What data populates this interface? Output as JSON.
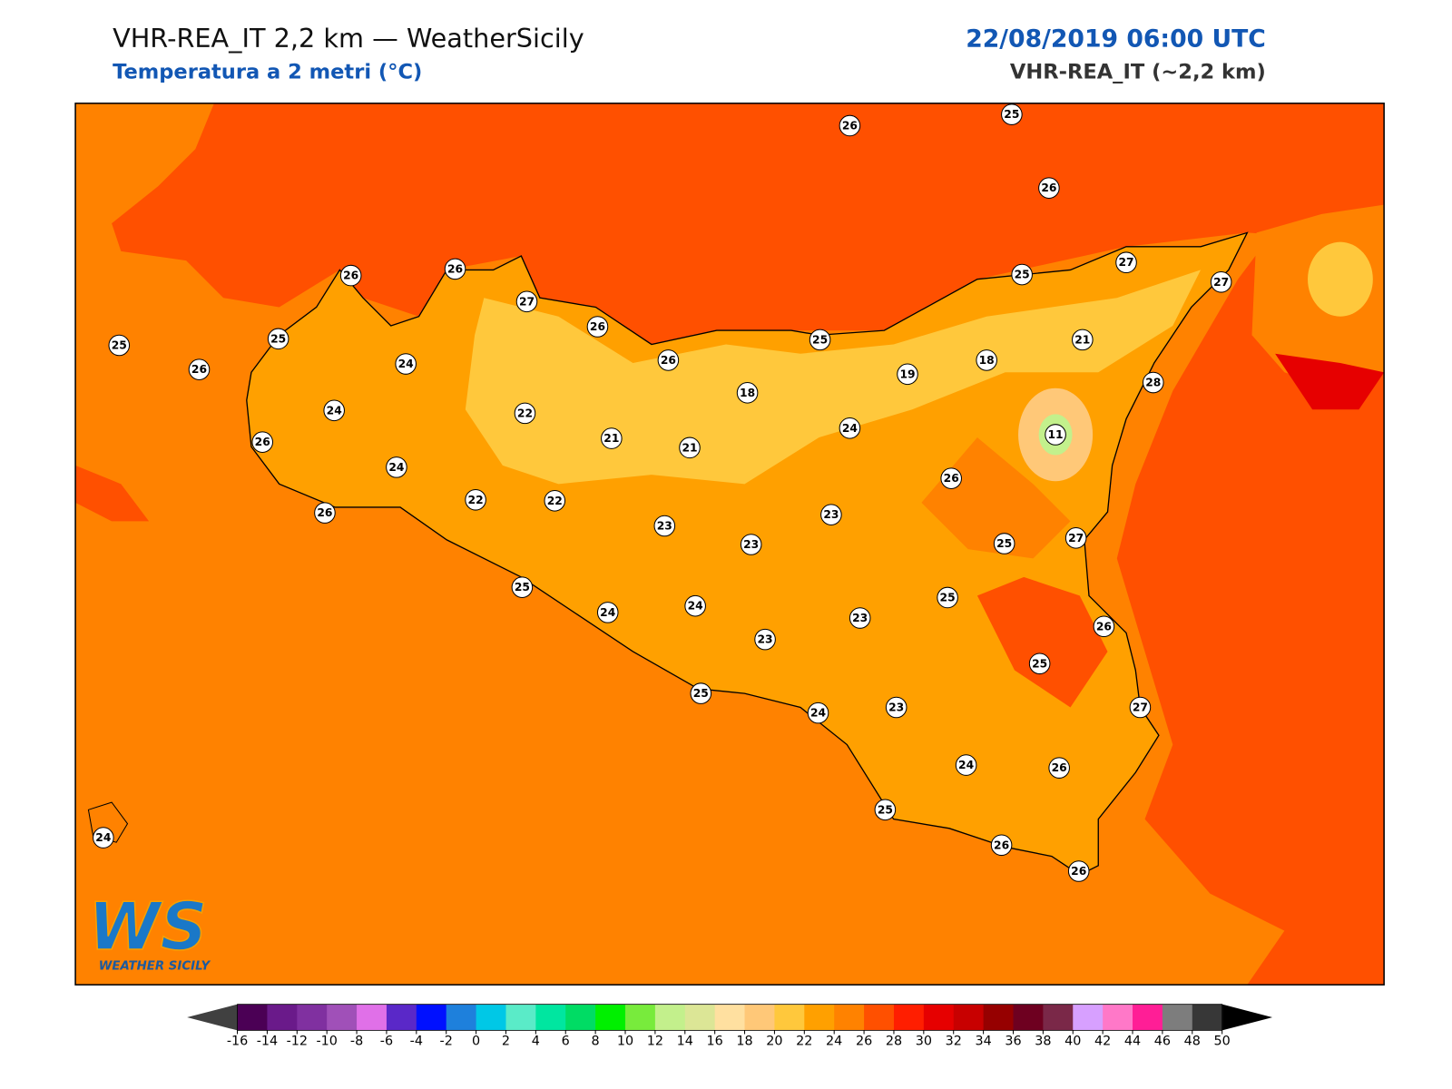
{
  "header": {
    "title": "VHR-REA_IT 2,2 km — WeatherSicily",
    "subtitle": "Temperatura a 2 metri (°C)",
    "datetime": "22/08/2019 06:00 UTC",
    "model": "VHR-REA_IT (~2,2 km)"
  },
  "stations": {
    "values": [
      26,
      25,
      26,
      27,
      27,
      25,
      26,
      26,
      27,
      26,
      26,
      25,
      25,
      25,
      26,
      24,
      24,
      22,
      18,
      19,
      18,
      21,
      28,
      21,
      21,
      24,
      11,
      26,
      24,
      22,
      22,
      26,
      26,
      23,
      23,
      23,
      25,
      27,
      25,
      24,
      24,
      25,
      23,
      23,
      26,
      25,
      25,
      24,
      23,
      27,
      24,
      26,
      25,
      24,
      26,
      26
    ]
  },
  "colorbar": {
    "ticks": [
      -16,
      -14,
      -12,
      -10,
      -8,
      -6,
      -4,
      -2,
      0,
      2,
      4,
      6,
      8,
      10,
      12,
      14,
      16,
      18,
      20,
      22,
      24,
      26,
      28,
      30,
      32,
      34,
      36,
      38,
      40,
      42,
      44,
      46,
      48,
      50
    ],
    "colors": [
      "#4b0055",
      "#6a1a8a",
      "#8030a0",
      "#a050b8",
      "#e070e8",
      "#5a28c8",
      "#0010ff",
      "#1e80dc",
      "#00c8e6",
      "#5aebc8",
      "#00e6a0",
      "#00dc64",
      "#00f000",
      "#78eb3c",
      "#c3f08c",
      "#dce696",
      "#ffe0a0",
      "#ffc878",
      "#ffc83c",
      "#ffa000",
      "#ff8200",
      "#ff5000",
      "#ff1e00",
      "#e60000",
      "#c80000",
      "#960000",
      "#6e0020",
      "#7a2848",
      "#d7a0ff",
      "#ff78c8",
      "#ff1e96",
      "#7d7d7d",
      "#373737"
    ],
    "under_color": "#404040",
    "over_color": "#000000"
  },
  "logo": {
    "mark": "WS",
    "text": "WEATHER SICILY"
  }
}
